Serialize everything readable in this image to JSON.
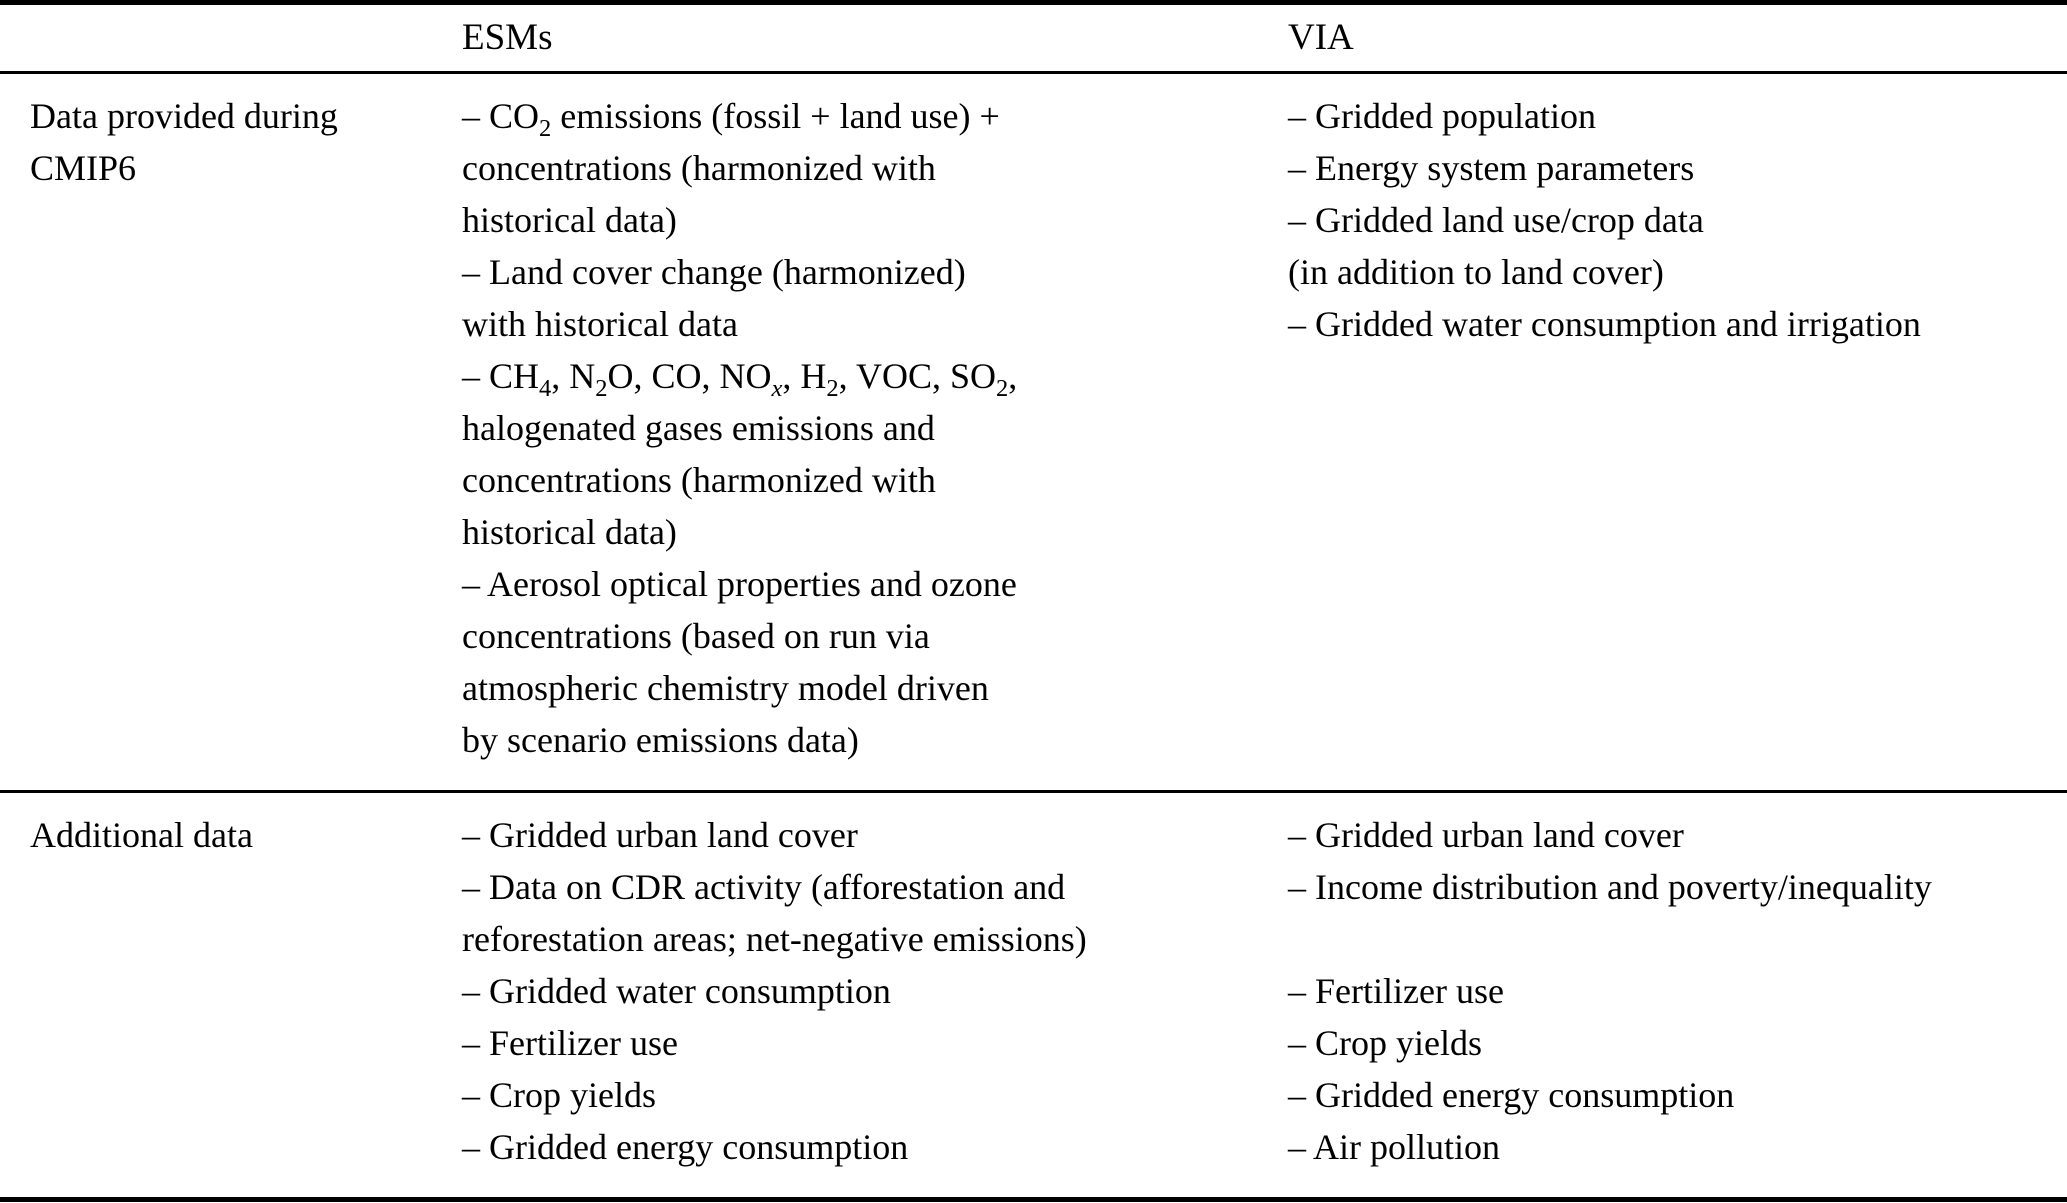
{
  "table": {
    "columns": [
      "",
      "ESMs",
      "VIA"
    ],
    "rows": [
      {
        "label_lines": [
          "Data provided during",
          "CMIP6"
        ],
        "esms_lines": [
          "– CO<sub>2</sub> emissions (fossil + land use) +",
          "concentrations (harmonized with",
          "historical data)",
          "– Land cover change (harmonized)",
          "with historical data",
          "– CH<sub>4</sub>, N<sub>2</sub>O, CO, NO<sub><i>x</i></sub>, H<sub>2</sub>, VOC, SO<sub>2</sub>,",
          "halogenated gases emissions and",
          "concentrations (harmonized with",
          "historical data)",
          "– Aerosol optical properties and ozone",
          "concentrations (based on run via",
          "atmospheric chemistry model driven",
          "by scenario emissions data)"
        ],
        "via_lines": [
          "– Gridded population",
          "– Energy system parameters",
          "– Gridded land use/crop data",
          "(in addition to land cover)",
          "– Gridded water consumption and irrigation"
        ]
      },
      {
        "label_lines": [
          "Additional data"
        ],
        "esms_lines": [
          "– Gridded urban land cover",
          "– Data on CDR activity (afforestation and",
          "reforestation areas; net-negative emissions)",
          "– Gridded water consumption",
          "– Fertilizer use",
          "– Crop yields",
          "– Gridded energy consumption"
        ],
        "via_lines": [
          "– Gridded urban land cover",
          "– Income distribution and poverty/inequality",
          "",
          "– Fertilizer use",
          "– Crop yields",
          "– Gridded energy consumption",
          "– Air pollution"
        ]
      }
    ]
  }
}
